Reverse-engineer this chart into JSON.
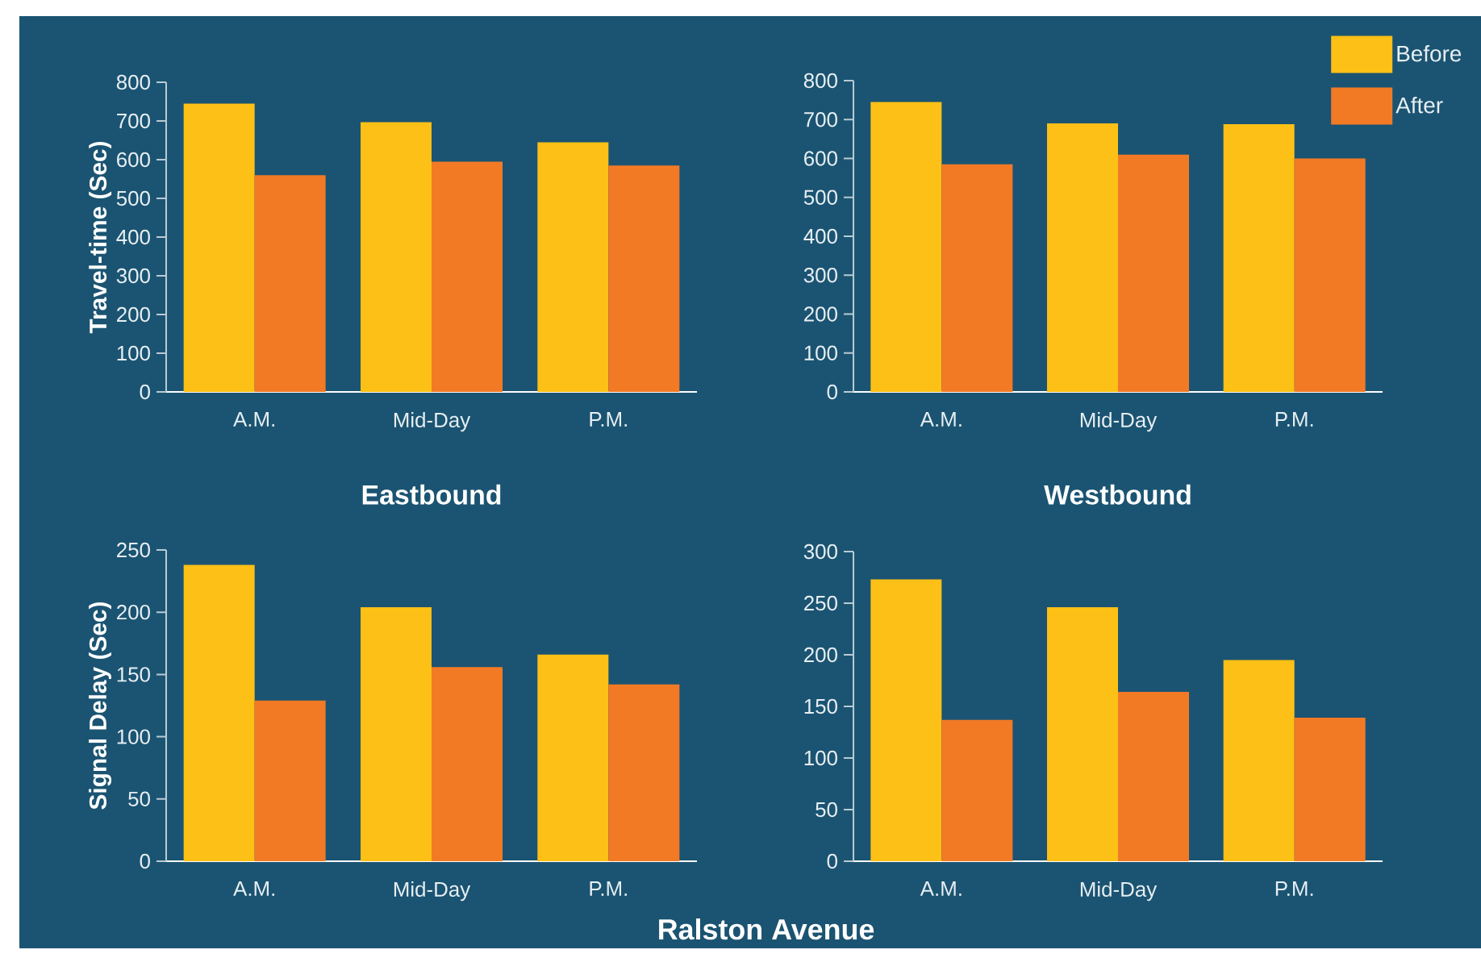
{
  "chart_data": [
    {
      "type": "bar",
      "xlabel": "Eastbound",
      "ylabel": "Travel-time (Sec)",
      "categories": [
        "A.M.",
        "Mid-Day",
        "P.M."
      ],
      "ylim": [
        0,
        800
      ],
      "yticks": [
        0,
        100,
        200,
        300,
        400,
        500,
        600,
        700,
        800
      ],
      "series": [
        {
          "color": "#fdc016",
          "values": [
            745,
            697,
            645
          ]
        },
        {
          "color": "#f37a25",
          "values": [
            560,
            595,
            585
          ]
        }
      ]
    },
    {
      "type": "bar",
      "xlabel": "Westbound",
      "categories": [
        "A.M.",
        "Mid-Day",
        "P.M."
      ],
      "ylim": [
        0,
        800
      ],
      "yticks": [
        0,
        100,
        200,
        300,
        400,
        500,
        600,
        700,
        800
      ],
      "legend": "top right",
      "series": [
        {
          "name": "Before",
          "color": "#fdc016",
          "values": [
            745,
            690,
            688
          ]
        },
        {
          "name": "After",
          "color": "#f37a25",
          "values": [
            585,
            610,
            600
          ]
        }
      ]
    },
    {
      "type": "bar",
      "ylabel": "Signal Delay (Sec)",
      "categories": [
        "A.M.",
        "Mid-Day",
        "P.M."
      ],
      "ylim": [
        0,
        250
      ],
      "yticks": [
        0,
        50,
        100,
        150,
        200,
        250
      ],
      "annotations": [
        "Ralston Avenue"
      ],
      "series": [
        {
          "color": "#fdc016",
          "values": [
            238,
            204,
            166
          ]
        },
        {
          "color": "#f37a25",
          "values": [
            129,
            156,
            142
          ]
        }
      ]
    },
    {
      "type": "bar",
      "categories": [
        "A.M.",
        "Mid-Day",
        "P.M."
      ],
      "ylim": [
        0,
        300
      ],
      "yticks": [
        0,
        50,
        100,
        150,
        200,
        250,
        300
      ],
      "series": [
        {
          "color": "#fdc016",
          "values": [
            273,
            246,
            195
          ]
        },
        {
          "color": "#f37a25",
          "values": [
            137,
            164,
            139
          ]
        }
      ]
    }
  ]
}
